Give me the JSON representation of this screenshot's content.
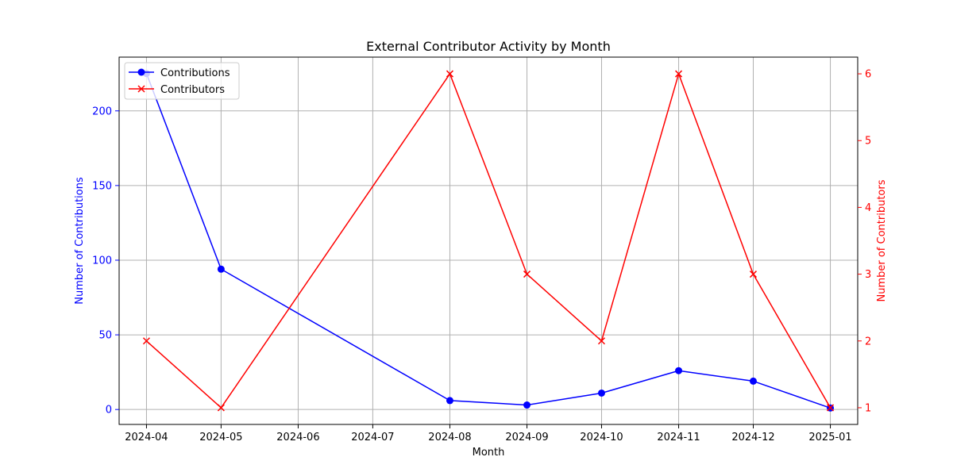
{
  "chart_data": {
    "type": "line",
    "title": "External Contributor Activity by Month",
    "xlabel": "Month",
    "ylabel_left": "Number of Contributions",
    "ylabel_right": "Number of Contributors",
    "x_ticks": [
      "2024-04",
      "2024-05",
      "2024-06",
      "2024-07",
      "2024-08",
      "2024-09",
      "2024-10",
      "2024-11",
      "2024-12",
      "2025-01"
    ],
    "xlim": [
      "2024-03-21",
      "2025-01-12"
    ],
    "ylim_left": [
      -10,
      236
    ],
    "yticks_left": [
      0,
      50,
      100,
      150,
      200
    ],
    "ylim_right": [
      0.75,
      6.25
    ],
    "yticks_right": [
      1,
      2,
      3,
      4,
      5,
      6
    ],
    "grid": true,
    "legend_position": "upper left",
    "series": [
      {
        "name": "Contributions",
        "axis": "left",
        "color": "#0000ff",
        "marker": "circle",
        "x": [
          "2024-04-01",
          "2024-05-01",
          "2024-08-01",
          "2024-09-01",
          "2024-10-01",
          "2024-11-01",
          "2024-12-01",
          "2025-01-01"
        ],
        "values": [
          225,
          94,
          6,
          3,
          11,
          26,
          19,
          1
        ]
      },
      {
        "name": "Contributors",
        "axis": "right",
        "color": "#ff0000",
        "marker": "x",
        "x": [
          "2024-04-01",
          "2024-05-01",
          "2024-08-01",
          "2024-09-01",
          "2024-10-01",
          "2024-11-01",
          "2024-12-01",
          "2025-01-01"
        ],
        "values": [
          2,
          1,
          6,
          3,
          2,
          6,
          3,
          1
        ]
      }
    ]
  }
}
